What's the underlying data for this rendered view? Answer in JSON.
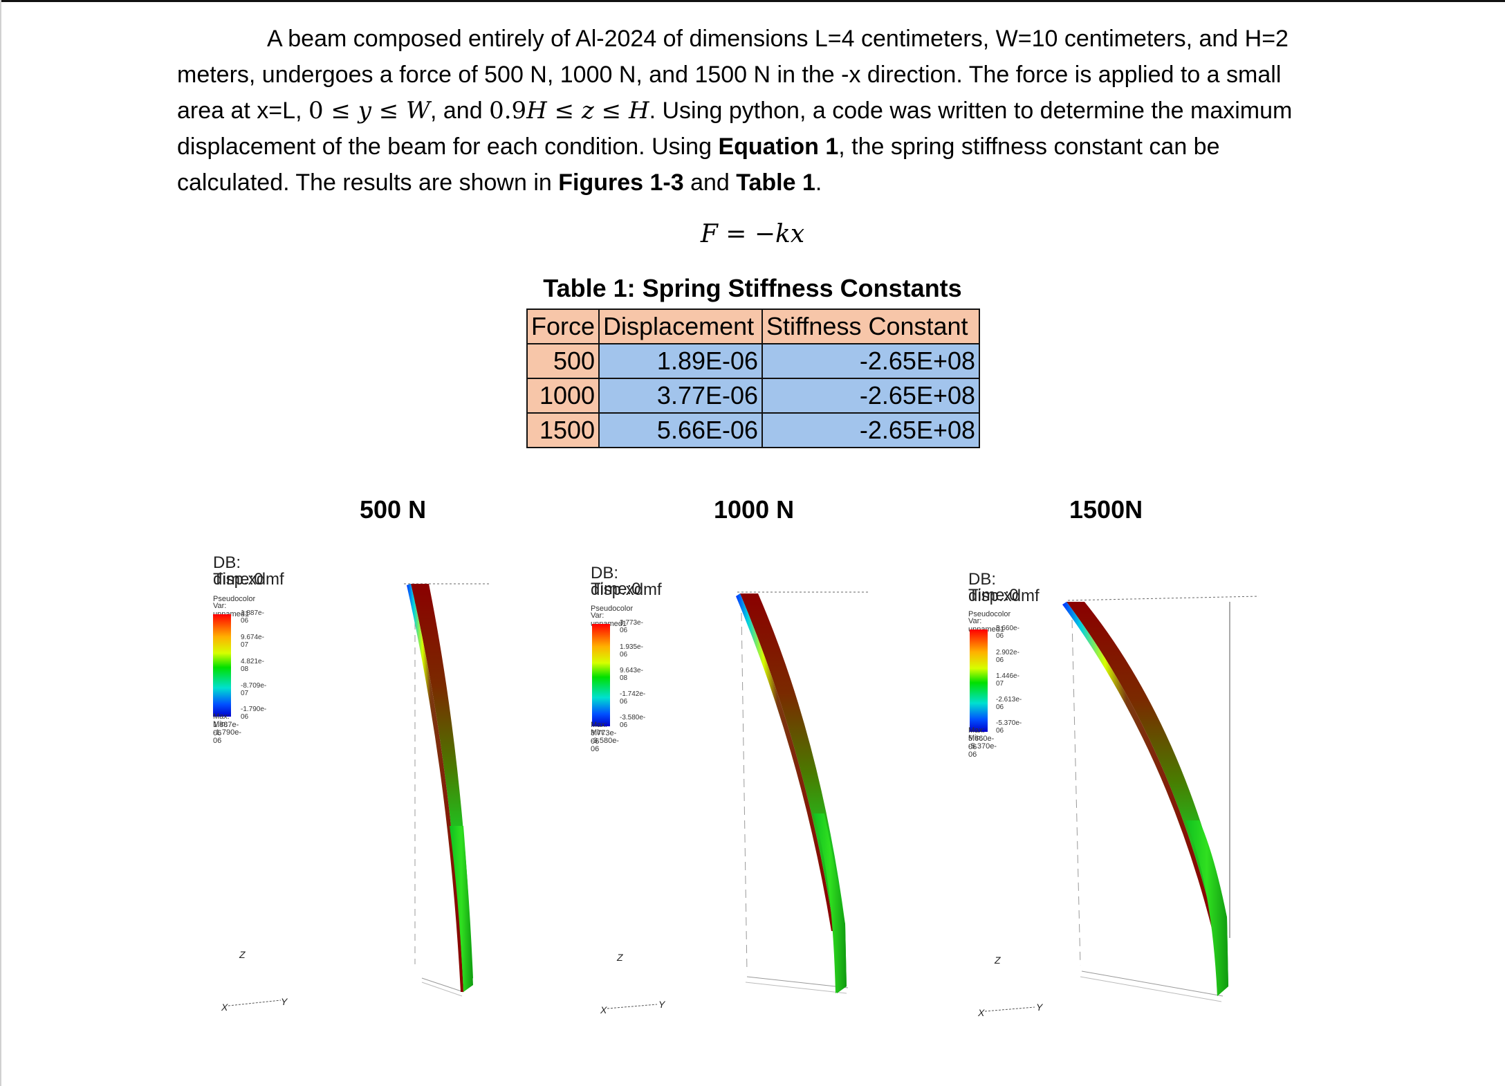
{
  "paragraph": {
    "s1": "A beam composed entirely of Al-2024 of dimensions L=4 centimeters, W=10 centimeters, and H=2 meters, undergoes a force of 500 N, 1000 N, and 1500 N in the -x direction. The force is applied to a small area at x=L, ",
    "m1": "0 ≤ ",
    "m1v1": "y",
    "m1b": " ≤ ",
    "m1v2": "W",
    "s2": ", and ",
    "m2": "0.9",
    "m2v1": "H",
    "m2b": " ≤ ",
    "m2v2": "z",
    "m2c": " ≤ ",
    "m2v3": "H",
    "s3": ". Using python, a code was written to determine the maximum displacement of the beam for each condition. Using ",
    "b1": "Equation 1",
    "s4": ", the spring stiffness constant can be calculated. The results are shown in ",
    "b2": "Figures 1-3",
    "s5": " and ",
    "b3": "Table 1",
    "s6": "."
  },
  "equation": {
    "lhs": "F",
    "mid": " = −",
    "k": "k",
    "x": "x"
  },
  "table": {
    "caption": "Table 1: Spring Stiffness Constants",
    "headers": [
      "Force",
      "Displacement",
      "Stiffness Constant"
    ],
    "rows": [
      [
        "500",
        "1.89E-06",
        "-2.65E+08"
      ],
      [
        "1000",
        "3.77E-06",
        "-2.65E+08"
      ],
      [
        "1500",
        "5.66E-06",
        "-2.65E+08"
      ]
    ]
  },
  "figures": [
    {
      "label": "500 N",
      "db": "DB: disp.xdmf",
      "time": "Time:0",
      "plot": "Pseudocolor",
      "var": "Var: unnamed1",
      "ticks": [
        "1.887e-06",
        "9.674e-07",
        "4.821e-08",
        "-8.709e-07",
        "-1.790e-06"
      ],
      "max": "Max: 1.887e-06",
      "min": "Min: -1.790e-06",
      "axes": {
        "z": "Z",
        "x": "X",
        "y": "Y"
      }
    },
    {
      "label": "1000 N",
      "db": "DB: disp.xdmf",
      "time": "Time:0",
      "plot": "Pseudocolor",
      "var": "Var: unnamed1",
      "ticks": [
        "3.773e-06",
        "1.935e-06",
        "9.643e-08",
        "-1.742e-06",
        "-3.580e-06"
      ],
      "max": "Max: 3.773e-06",
      "min": "Min: -3.580e-06",
      "axes": {
        "z": "Z",
        "x": "X",
        "y": "Y"
      }
    },
    {
      "label": "1500N",
      "db": "DB: disp.xdmf",
      "time": "Time:0",
      "plot": "Pseudocolor",
      "var": "Var: unnamed1",
      "ticks": [
        "5.660e-06",
        "2.902e-06",
        "1.446e-07",
        "-2.613e-06",
        "-5.370e-06"
      ],
      "max": "Max: 5.660e-06",
      "min": "Min: -5.370e-06",
      "axes": {
        "z": "Z",
        "x": "X",
        "y": "Y"
      }
    }
  ]
}
